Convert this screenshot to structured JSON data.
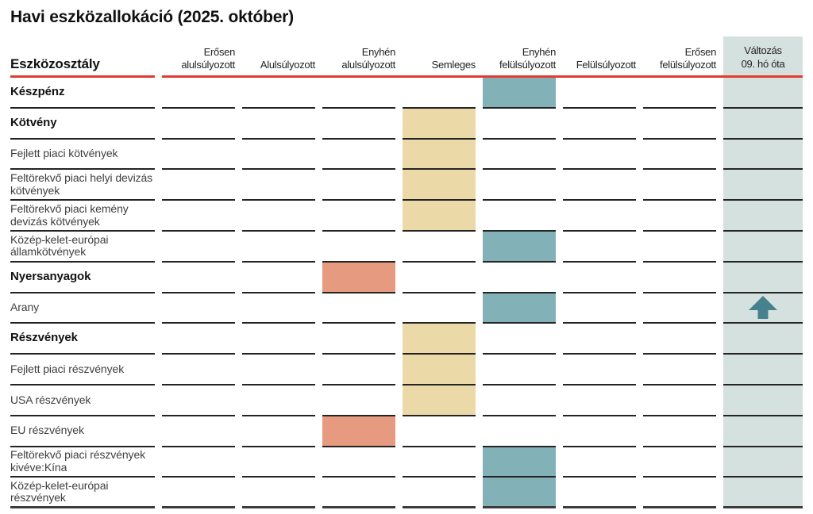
{
  "title": "Havi eszközallokáció (2025. október)",
  "table": {
    "label_header": "Eszközosztály",
    "columns": [
      "Erősen alulsúlyozott",
      "Alulsúlyozott",
      "Enyhén alulsúlyozott",
      "Semleges",
      "Enyhén felülsúlyozott",
      "Felülsúlyozott",
      "Erősen felülsúlyozott"
    ],
    "change_header_line1": "Változás",
    "change_header_line2": "09. hó óta",
    "rows": [
      {
        "label": "Készpénz",
        "bold": true,
        "position": "Enyhén felülsúlyozott",
        "position_index": 4,
        "box_color": "overweight",
        "change": null
      },
      {
        "label": "Kötvény",
        "bold": true,
        "position": "Semleges",
        "position_index": 3,
        "box_color": "neutral",
        "change": null
      },
      {
        "label": "Fejlett piaci kötvények",
        "bold": false,
        "position": "Semleges",
        "position_index": 3,
        "box_color": "neutral",
        "change": null
      },
      {
        "label": "Feltörekvő piaci helyi devizás kötvények",
        "bold": false,
        "position": "Semleges",
        "position_index": 3,
        "box_color": "neutral",
        "change": null
      },
      {
        "label": "Feltörekvő piaci kemény devizás kötvények",
        "bold": false,
        "position": "Semleges",
        "position_index": 3,
        "box_color": "neutral",
        "change": null
      },
      {
        "label": "Közép-kelet-európai államkötvények",
        "bold": false,
        "position": "Enyhén felülsúlyozott",
        "position_index": 4,
        "box_color": "overweight",
        "change": null
      },
      {
        "label": "Nyersanyagok",
        "bold": true,
        "position": "Enyhén alulsúlyozott",
        "position_index": 2,
        "box_color": "underweight",
        "change": null
      },
      {
        "label": "Arany",
        "bold": false,
        "position": "Enyhén felülsúlyozott",
        "position_index": 4,
        "box_color": "overweight",
        "change": "up"
      },
      {
        "label": "Részvények",
        "bold": true,
        "position": "Semleges",
        "position_index": 3,
        "box_color": "neutral",
        "change": null
      },
      {
        "label": "Fejlett piaci részvények",
        "bold": false,
        "position": "Semleges",
        "position_index": 3,
        "box_color": "neutral",
        "change": null
      },
      {
        "label": "USA részvények",
        "bold": false,
        "position": "Semleges",
        "position_index": 3,
        "box_color": "neutral",
        "change": null
      },
      {
        "label": "EU részvények",
        "bold": false,
        "position": "Enyhén alulsúlyozott",
        "position_index": 2,
        "box_color": "underweight",
        "change": null
      },
      {
        "label": "Feltörekvő piaci részvények kivéve:Kína",
        "bold": false,
        "position": "Enyhén felülsúlyozott",
        "position_index": 4,
        "box_color": "overweight",
        "change": null
      },
      {
        "label": "Közép-kelet-európai részvények",
        "bold": false,
        "position": "Enyhén felülsúlyozott",
        "position_index": 4,
        "box_color": "overweight",
        "change": null
      }
    ]
  },
  "colors": {
    "underweight": "#e69a7f",
    "neutral": "#ecd9a8",
    "overweight": "#82b1b8",
    "change_column_bg": "#d5e1de",
    "arrow": "#47818d",
    "header_rule": "#e23c30",
    "row_line": "#242424",
    "bottom_line": "#3c3c3c"
  },
  "chart_data": {
    "type": "heatmap",
    "title": "Havi eszközallokáció (2025. október)",
    "columns": [
      "Erősen alulsúlyozott",
      "Alulsúlyozott",
      "Enyhén alulsúlyozott",
      "Semleges",
      "Enyhén felülsúlyozott",
      "Felülsúlyozott",
      "Erősen felülsúlyozott"
    ],
    "rows": [
      "Készpénz",
      "Kötvény",
      "Fejlett piaci kötvények",
      "Feltörekvő piaci helyi devizás kötvények",
      "Feltörekvő piaci kemény devizás kötvények",
      "Közép-kelet-európai államkötvények",
      "Nyersanyagok",
      "Arany",
      "Részvények",
      "Fejlett piaci részvények",
      "USA részvények",
      "EU részvények",
      "Feltörekvő piaci részvények kivéve:Kína",
      "Közép-kelet-európai részvények"
    ],
    "values": [
      "Enyhén felülsúlyozott",
      "Semleges",
      "Semleges",
      "Semleges",
      "Semleges",
      "Enyhén felülsúlyozott",
      "Enyhén alulsúlyozott",
      "Enyhén felülsúlyozott",
      "Semleges",
      "Semleges",
      "Semleges",
      "Enyhén alulsúlyozott",
      "Enyhén felülsúlyozott",
      "Enyhén felülsúlyozott"
    ],
    "change_column_label": "Változás 09. hó óta",
    "changes_since_september": {
      "Arany": "up"
    },
    "legend_position": "none",
    "grid": "row-separators"
  }
}
